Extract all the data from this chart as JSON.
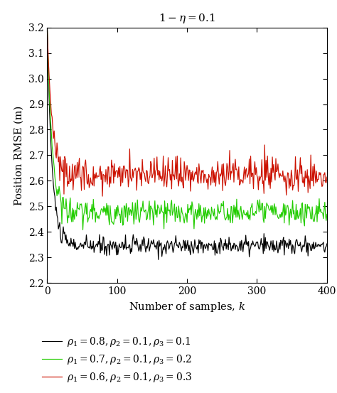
{
  "title": "$1 - \\eta = 0.1$",
  "xlabel": "Number of samples, $k$",
  "ylabel": "Position RMSE (m)",
  "xlim": [
    0,
    400
  ],
  "ylim": [
    2.2,
    3.2
  ],
  "yticks": [
    2.2,
    2.3,
    2.4,
    2.5,
    2.6,
    2.7,
    2.8,
    2.9,
    3.0,
    3.1,
    3.2
  ],
  "xticks": [
    0,
    100,
    200,
    300,
    400
  ],
  "n_points": 401,
  "black_level": 2.345,
  "green_level": 2.475,
  "red_level": 2.625,
  "black_noise": 0.018,
  "green_noise": 0.025,
  "red_noise": 0.033,
  "start_value": 3.2,
  "decay_k": 7,
  "colors": {
    "black": "#000000",
    "green": "#22cc00",
    "red": "#cc1100"
  },
  "legend_labels": [
    "$\\rho_1 = 0.8, \\rho_2 = 0.1, \\rho_3 = 0.1$",
    "$\\rho_1 = 0.7, \\rho_2 = 0.1, \\rho_3 = 0.2$",
    "$\\rho_1 = 0.6, \\rho_2 = 0.1, \\rho_3 = 0.3$"
  ],
  "background_color": "#ffffff",
  "linewidth": 0.85
}
